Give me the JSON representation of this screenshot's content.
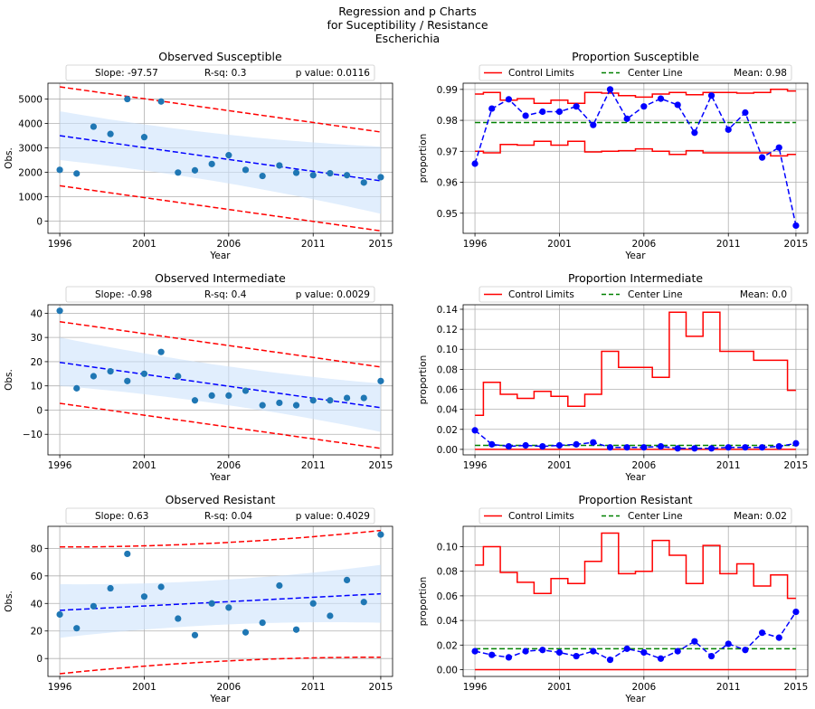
{
  "figure": {
    "title_lines": [
      "Regression and p Charts",
      "for Suceptibility / Resistance",
      "Escherichia"
    ]
  },
  "chart_data": [
    {
      "type": "scatter",
      "title": "Observed Susceptible",
      "xlabel": "Year",
      "ylabel": "Obs.",
      "xlim": [
        1995.3,
        2015.7
      ],
      "ylim": [
        -500,
        5650
      ],
      "xticks": [
        1996,
        2001,
        2006,
        2011,
        2015
      ],
      "yticks": [
        0,
        1000,
        2000,
        3000,
        4000,
        5000
      ],
      "grid": true,
      "legend": {
        "placement": "top",
        "items": [
          "Slope: -97.57",
          "R-sq: 0.3",
          "p value: 0.0116"
        ]
      },
      "x": [
        1996,
        1997,
        1998,
        1999,
        2000,
        2001,
        2002,
        2003,
        2004,
        2005,
        2006,
        2007,
        2008,
        2009,
        2010,
        2011,
        2012,
        2013,
        2014,
        2015
      ],
      "points": [
        2100,
        1950,
        3870,
        3570,
        5000,
        3440,
        4900,
        1990,
        2080,
        2340,
        2700,
        2100,
        1850,
        2280,
        1980,
        1880,
        1960,
        1880,
        1580,
        1800
      ],
      "fit": [
        3500,
        1650
      ],
      "ci_upper": [
        4300,
        2850
      ],
      "ci_lower": [
        2700,
        500
      ],
      "ci_bulge": 200,
      "pi_upper": [
        5500,
        3650
      ],
      "pi_lower": [
        1450,
        -400
      ],
      "colors": {
        "points": "#1f77b4",
        "fit": "#0000ff",
        "band": "#cde3fb",
        "prediction": "#ff0000"
      }
    },
    {
      "type": "line",
      "title": "Proportion Susceptible",
      "xlabel": "Year",
      "ylabel": "proportion",
      "xlim": [
        1995.3,
        2015.7
      ],
      "ylim": [
        0.9435,
        0.992
      ],
      "xticks": [
        1996,
        2001,
        2006,
        2011,
        2015
      ],
      "yticks": [
        0.95,
        0.96,
        0.97,
        0.98,
        0.99
      ],
      "ytick_labels": [
        "0.95",
        "0.96",
        "0.97",
        "0.98",
        "0.99"
      ],
      "grid": true,
      "legend": {
        "placement": "top",
        "items": [
          "Control Limits",
          "Center Line",
          "Mean: 0.98"
        ]
      },
      "x": [
        1996,
        1997,
        1998,
        1999,
        2000,
        2001,
        2002,
        2003,
        2004,
        2005,
        2006,
        2007,
        2008,
        2009,
        2010,
        2011,
        2012,
        2013,
        2014,
        2015
      ],
      "proportion": [
        0.966,
        0.9838,
        0.9868,
        0.9815,
        0.9828,
        0.9828,
        0.9845,
        0.9785,
        0.99,
        0.9805,
        0.9845,
        0.987,
        0.985,
        0.976,
        0.988,
        0.977,
        0.9825,
        0.968,
        0.9712,
        0.946
      ],
      "center": 0.9793,
      "ucl": [
        0.9885,
        0.989,
        0.9865,
        0.987,
        0.9855,
        0.9865,
        0.9855,
        0.989,
        0.9888,
        0.988,
        0.9875,
        0.9885,
        0.989,
        0.9883,
        0.989,
        0.989,
        0.9888,
        0.989,
        0.99,
        0.9895
      ],
      "lcl": [
        0.97,
        0.9695,
        0.9722,
        0.972,
        0.9732,
        0.972,
        0.9732,
        0.9698,
        0.97,
        0.9702,
        0.9708,
        0.97,
        0.969,
        0.9702,
        0.9695,
        0.9695,
        0.9695,
        0.9695,
        0.9685,
        0.969
      ],
      "colors": {
        "proportion": "#0000ff",
        "center": "#008000",
        "limits": "#ff0000"
      }
    },
    {
      "type": "scatter",
      "title": "Observed Intermediate",
      "xlabel": "Year",
      "ylabel": "Obs.",
      "xlim": [
        1995.3,
        2015.7
      ],
      "ylim": [
        -18.5,
        43.5
      ],
      "xticks": [
        1996,
        2001,
        2006,
        2011,
        2015
      ],
      "yticks": [
        -10,
        0,
        10,
        20,
        30,
        40
      ],
      "grid": true,
      "legend": {
        "placement": "top",
        "items": [
          "Slope: -0.98",
          "R-sq: 0.4",
          "p value: 0.0029"
        ]
      },
      "x": [
        1996,
        1997,
        1998,
        1999,
        2000,
        2001,
        2002,
        2003,
        2004,
        2005,
        2006,
        2007,
        2008,
        2009,
        2010,
        2011,
        2012,
        2013,
        2014,
        2015
      ],
      "points": [
        41,
        9,
        14,
        16,
        12,
        15,
        24,
        14,
        4,
        6,
        6,
        8,
        2,
        3,
        2,
        4,
        4,
        5,
        5,
        12
      ],
      "fit": [
        19.7,
        1.0
      ],
      "ci_upper": [
        28,
        9
      ],
      "ci_lower": [
        12,
        -7
      ],
      "ci_bulge": 2,
      "pi_upper": [
        36.5,
        17.8
      ],
      "pi_lower": [
        2.8,
        -15.8
      ],
      "colors": {
        "points": "#1f77b4",
        "fit": "#0000ff",
        "band": "#cde3fb",
        "prediction": "#ff0000"
      }
    },
    {
      "type": "line",
      "title": "Proportion Intermediate",
      "xlabel": "Year",
      "ylabel": "proportion",
      "xlim": [
        1995.3,
        2015.7
      ],
      "ylim": [
        -0.0055,
        0.1445
      ],
      "xticks": [
        1996,
        2001,
        2006,
        2011,
        2015
      ],
      "yticks": [
        0,
        0.02,
        0.04,
        0.06,
        0.08,
        0.1,
        0.12,
        0.14
      ],
      "ytick_labels": [
        "0.00",
        "0.02",
        "0.04",
        "0.06",
        "0.08",
        "0.10",
        "0.12",
        "0.14"
      ],
      "grid": true,
      "legend": {
        "placement": "top",
        "items": [
          "Control Limits",
          "Center Line",
          "Mean: 0.0"
        ]
      },
      "x": [
        1996,
        1997,
        1998,
        1999,
        2000,
        2001,
        2002,
        2003,
        2004,
        2005,
        2006,
        2007,
        2008,
        2009,
        2010,
        2011,
        2012,
        2013,
        2014,
        2015
      ],
      "proportion": [
        0.019,
        0.005,
        0.003,
        0.004,
        0.003,
        0.004,
        0.005,
        0.007,
        0.002,
        0.002,
        0.002,
        0.003,
        0.001,
        0.001,
        0.001,
        0.002,
        0.002,
        0.002,
        0.003,
        0.006
      ],
      "center": 0.004,
      "ucl": [
        0.034,
        0.067,
        0.055,
        0.051,
        0.058,
        0.053,
        0.043,
        0.055,
        0.098,
        0.082,
        0.082,
        0.072,
        0.137,
        0.113,
        0.137,
        0.098,
        0.098,
        0.089,
        0.089,
        0.059
      ],
      "lcl": [
        0,
        0,
        0,
        0,
        0,
        0,
        0,
        0,
        0,
        0,
        0,
        0,
        0,
        0,
        0,
        0,
        0,
        0,
        0,
        0
      ],
      "colors": {
        "proportion": "#0000ff",
        "center": "#008000",
        "limits": "#ff0000"
      }
    },
    {
      "type": "scatter",
      "title": "Observed Resistant",
      "xlabel": "Year",
      "ylabel": "Obs.",
      "xlim": [
        1995.3,
        2015.7
      ],
      "ylim": [
        -13,
        96
      ],
      "xticks": [
        1996,
        2001,
        2006,
        2011,
        2015
      ],
      "yticks": [
        0,
        20,
        40,
        60,
        80
      ],
      "grid": true,
      "legend": {
        "placement": "top",
        "items": [
          "Slope: 0.63",
          "R-sq: 0.04",
          "p value: 0.4029"
        ]
      },
      "x": [
        1996,
        1997,
        1998,
        1999,
        2000,
        2001,
        2002,
        2003,
        2004,
        2005,
        2006,
        2007,
        2008,
        2009,
        2010,
        2011,
        2012,
        2013,
        2014,
        2015
      ],
      "points": [
        32,
        22,
        38,
        51,
        76,
        45,
        52,
        29,
        17,
        40,
        37,
        19,
        26,
        53,
        21,
        40,
        31,
        57,
        41,
        90
      ],
      "fit": [
        35,
        47
      ],
      "ci_upper": [
        50,
        64
      ],
      "ci_lower": [
        19,
        30
      ],
      "ci_bulge": 4,
      "pi_upper": [
        78,
        90
      ],
      "pi_lower": [
        -8,
        4
      ],
      "pi_bulge": 3,
      "colors": {
        "points": "#1f77b4",
        "fit": "#0000ff",
        "band": "#cde3fb",
        "prediction": "#ff0000"
      }
    },
    {
      "type": "line",
      "title": "Proportion Resistant",
      "xlabel": "Year",
      "ylabel": "proportion",
      "xlim": [
        1995.3,
        2015.7
      ],
      "ylim": [
        -0.0055,
        0.1165
      ],
      "xticks": [
        1996,
        2001,
        2006,
        2011,
        2015
      ],
      "yticks": [
        0,
        0.02,
        0.04,
        0.06,
        0.08,
        0.1
      ],
      "ytick_labels": [
        "0.00",
        "0.02",
        "0.04",
        "0.06",
        "0.08",
        "0.10"
      ],
      "grid": true,
      "legend": {
        "placement": "top",
        "items": [
          "Control Limits",
          "Center Line",
          "Mean: 0.02"
        ]
      },
      "x": [
        1996,
        1997,
        1998,
        1999,
        2000,
        2001,
        2002,
        2003,
        2004,
        2005,
        2006,
        2007,
        2008,
        2009,
        2010,
        2011,
        2012,
        2013,
        2014,
        2015
      ],
      "proportion": [
        0.015,
        0.012,
        0.01,
        0.015,
        0.016,
        0.014,
        0.011,
        0.015,
        0.008,
        0.017,
        0.014,
        0.009,
        0.015,
        0.023,
        0.011,
        0.021,
        0.016,
        0.03,
        0.026,
        0.047
      ],
      "center": 0.017,
      "ucl": [
        0.085,
        0.1,
        0.079,
        0.071,
        0.062,
        0.074,
        0.07,
        0.088,
        0.111,
        0.078,
        0.08,
        0.105,
        0.093,
        0.07,
        0.101,
        0.078,
        0.086,
        0.068,
        0.077,
        0.058
      ],
      "lcl": [
        0,
        0,
        0,
        0,
        0,
        0,
        0,
        0,
        0,
        0,
        0,
        0,
        0,
        0,
        0,
        0,
        0,
        0,
        0,
        0
      ],
      "colors": {
        "proportion": "#0000ff",
        "center": "#008000",
        "limits": "#ff0000"
      }
    }
  ]
}
